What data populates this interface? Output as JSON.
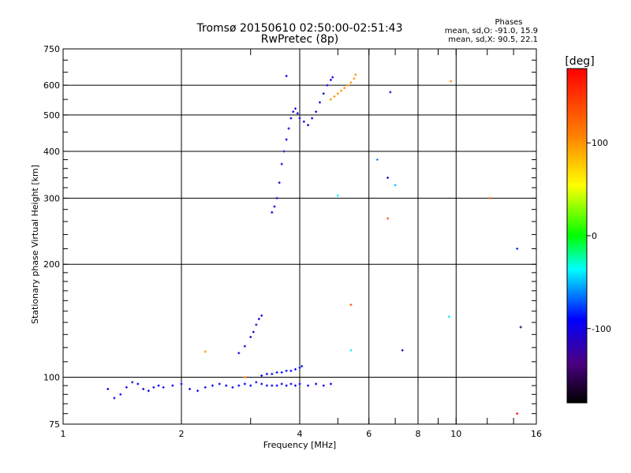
{
  "chart_data": {
    "type": "scatter",
    "title": "Tromsø 20150610 02:50:00-02:51:43",
    "subtitle": "RwPretec (8p)",
    "stats": {
      "heading": "Phases",
      "line_o": "mean, sd,O: -91.0, 15.9",
      "line_x": "mean, sd,X:  90.5, 22.1"
    },
    "xlabel": "Frequency [MHz]",
    "ylabel": "Stationary phase Virtual Height [km]",
    "x_scale": "log",
    "y_scale": "log",
    "xlim": [
      1,
      16
    ],
    "ylim": [
      75,
      750
    ],
    "x_ticks": [
      1,
      2,
      4,
      6,
      8,
      10,
      16
    ],
    "x_tick_labels": [
      "1",
      "2",
      "4",
      "6",
      "8",
      "10",
      "16"
    ],
    "y_ticks": [
      75,
      100,
      200,
      300,
      400,
      500,
      600,
      750
    ],
    "y_tick_labels": [
      "75",
      "100",
      "200",
      "300",
      "400",
      "500",
      "600",
      "750"
    ],
    "grid": true,
    "colorbar": {
      "label": "[deg]",
      "range": [
        -180,
        180
      ],
      "ticks": [
        100,
        0,
        -100
      ],
      "tick_labels": [
        "100",
        "0",
        "-100"
      ]
    },
    "series": [
      {
        "trace": "E-layer-lower",
        "x": [
          1.3,
          1.35,
          1.4,
          1.45,
          1.5,
          1.55,
          1.6,
          1.65,
          1.7,
          1.75,
          1.8,
          1.9,
          2.0,
          2.1,
          2.2,
          2.3,
          2.4,
          2.5,
          2.6,
          2.7,
          2.8,
          2.9,
          3.0,
          3.1,
          3.2,
          3.3,
          3.4,
          3.5,
          3.6,
          3.7,
          3.8,
          3.9,
          4.0,
          4.2,
          4.4,
          4.6,
          4.8
        ],
        "y": [
          93,
          88,
          90,
          94,
          97,
          96,
          93,
          92,
          94,
          95,
          94,
          95,
          96,
          93,
          92,
          94,
          95,
          96,
          95,
          94,
          95,
          96,
          95,
          97,
          96,
          95,
          95,
          95,
          96,
          95,
          96,
          95,
          96,
          95,
          96,
          95,
          96
        ],
        "phase_deg": -95
      },
      {
        "trace": "E-layer-upper",
        "x": [
          3.2,
          3.3,
          3.4,
          3.5,
          3.6,
          3.7,
          3.8,
          3.9,
          4.0,
          4.05
        ],
        "y": [
          101,
          102,
          102,
          103,
          103,
          104,
          104,
          105,
          106,
          107
        ],
        "phase_deg": -90
      },
      {
        "trace": "Es-spread",
        "x": [
          2.8,
          2.9,
          3.0,
          3.05,
          3.1,
          3.15,
          3.2
        ],
        "y": [
          116,
          121,
          128,
          132,
          138,
          143,
          146
        ],
        "phase_deg": -110
      },
      {
        "trace": "F-trace",
        "x": [
          3.4,
          3.45,
          3.5,
          3.55,
          3.6,
          3.65,
          3.7,
          3.75,
          3.8,
          3.85,
          3.9,
          3.95,
          4.0,
          4.1,
          4.2,
          4.3,
          4.4,
          4.5,
          4.6,
          4.7,
          4.8,
          4.85
        ],
        "y": [
          275,
          285,
          300,
          330,
          370,
          400,
          430,
          460,
          490,
          510,
          520,
          505,
          490,
          480,
          470,
          490,
          510,
          540,
          570,
          600,
          620,
          630
        ],
        "phase_deg": -100
      },
      {
        "trace": "F-X-mode",
        "x": [
          4.8,
          4.9,
          5.0,
          5.1,
          5.2,
          5.3,
          5.4,
          5.5,
          5.55
        ],
        "y": [
          550,
          560,
          570,
          580,
          590,
          600,
          610,
          625,
          640
        ],
        "phase_deg": 100
      },
      {
        "trace": "scattered",
        "x": [
          3.7,
          2.3,
          6.3,
          6.7,
          7.0,
          6.7,
          5.0,
          7.3,
          9.6,
          12.2,
          14.3,
          14.6,
          14.3,
          6.8,
          5.4,
          5.4,
          9.7,
          2.9
        ],
        "y": [
          635,
          117,
          380,
          340,
          325,
          265,
          305,
          118,
          145,
          300,
          220,
          136,
          80,
          575,
          156,
          118,
          615,
          100
        ],
        "phase_deg": [
          -100,
          100,
          -60,
          -90,
          -50,
          130,
          -40,
          -120,
          -40,
          130,
          -80,
          -150,
          170,
          -120,
          130,
          -40,
          100,
          110
        ]
      }
    ]
  }
}
